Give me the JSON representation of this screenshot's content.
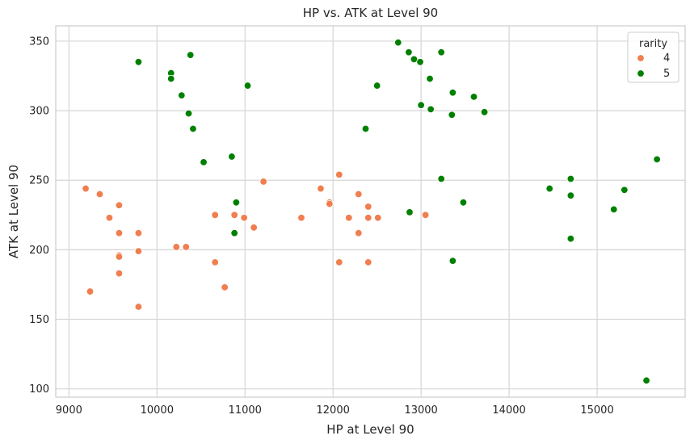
{
  "chart_data": {
    "type": "scatter",
    "title": "HP vs. ATK at Level 90",
    "xlabel": "HP at Level 90",
    "ylabel": "ATK at Level 90",
    "xlim": [
      8850,
      16000
    ],
    "ylim": [
      94,
      361
    ],
    "xticks": [
      9000,
      10000,
      11000,
      12000,
      13000,
      14000,
      15000
    ],
    "yticks": [
      100,
      150,
      200,
      250,
      300,
      350
    ],
    "grid": true,
    "legend": {
      "title": "rarity",
      "placement": "top-right"
    },
    "series": [
      {
        "name": "4",
        "color": "#f07e4f",
        "points": [
          [
            9190,
            244
          ],
          [
            9240,
            170
          ],
          [
            9350,
            240
          ],
          [
            9460,
            223
          ],
          [
            9570,
            232
          ],
          [
            9570,
            212
          ],
          [
            9570,
            196
          ],
          [
            9570,
            195
          ],
          [
            9570,
            183
          ],
          [
            9790,
            212
          ],
          [
            9790,
            199
          ],
          [
            9790,
            159
          ],
          [
            10220,
            202
          ],
          [
            10330,
            202
          ],
          [
            10660,
            225
          ],
          [
            10660,
            191
          ],
          [
            10770,
            173
          ],
          [
            10880,
            225
          ],
          [
            10990,
            223
          ],
          [
            11100,
            216
          ],
          [
            11210,
            249
          ],
          [
            11640,
            223
          ],
          [
            11860,
            244
          ],
          [
            11960,
            234
          ],
          [
            11960,
            233
          ],
          [
            12070,
            254
          ],
          [
            12070,
            191
          ],
          [
            12180,
            223
          ],
          [
            12290,
            240
          ],
          [
            12290,
            212
          ],
          [
            12400,
            231
          ],
          [
            12400,
            223
          ],
          [
            12400,
            191
          ],
          [
            12510,
            223
          ],
          [
            13050,
            225
          ]
        ]
      },
      {
        "name": "5",
        "color": "#008000",
        "points": [
          [
            9790,
            335
          ],
          [
            10160,
            327
          ],
          [
            10160,
            323
          ],
          [
            10280,
            311
          ],
          [
            10360,
            298
          ],
          [
            10380,
            340
          ],
          [
            10410,
            287
          ],
          [
            10530,
            263
          ],
          [
            10850,
            267
          ],
          [
            10880,
            212
          ],
          [
            10900,
            234
          ],
          [
            11030,
            318
          ],
          [
            12370,
            287
          ],
          [
            12500,
            318
          ],
          [
            12740,
            349
          ],
          [
            12860,
            342
          ],
          [
            12870,
            227
          ],
          [
            12920,
            337
          ],
          [
            12990,
            335
          ],
          [
            13000,
            304
          ],
          [
            13100,
            323
          ],
          [
            13110,
            301
          ],
          [
            13230,
            342
          ],
          [
            13230,
            251
          ],
          [
            13350,
            297
          ],
          [
            13360,
            313
          ],
          [
            13360,
            192
          ],
          [
            13480,
            234
          ],
          [
            13600,
            310
          ],
          [
            13720,
            299
          ],
          [
            14460,
            244
          ],
          [
            14700,
            251
          ],
          [
            14700,
            239
          ],
          [
            14700,
            208
          ],
          [
            15190,
            229
          ],
          [
            15310,
            243
          ],
          [
            15560,
            106
          ],
          [
            15680,
            265
          ]
        ]
      }
    ]
  }
}
